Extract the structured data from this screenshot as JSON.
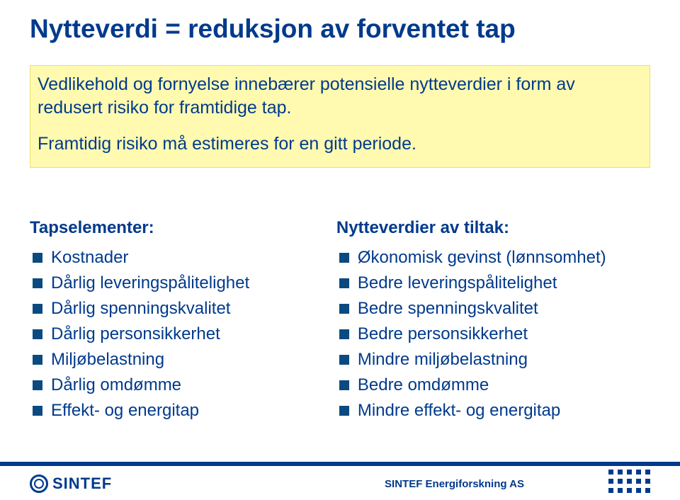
{
  "colors": {
    "brand": "#003a8c",
    "bullet": "#0b4a80",
    "highlight_bg": "#fffab0",
    "highlight_border": "#e8df70",
    "background": "#ffffff"
  },
  "typography": {
    "font_family": "Arial",
    "title_fontsize": 37,
    "title_weight": 700,
    "body_fontsize": 25,
    "list_fontsize": 24,
    "header_fontsize": 24,
    "header_weight": 700
  },
  "title": "Nytteverdi = reduksjon av forventet tap",
  "highlight": {
    "p1": "Vedlikehold og fornyelse innebærer potensielle nytteverdier i form av redusert risiko for framtidige tap.",
    "p2": "Framtidig risiko må estimeres for en gitt periode."
  },
  "left": {
    "header": "Tapselementer:",
    "items": [
      "Kostnader",
      "Dårlig leveringspålitelighet",
      "Dårlig spenningskvalitet",
      "Dårlig personsikkerhet",
      "Miljøbelastning",
      "Dårlig omdømme",
      "Effekt- og energitap"
    ]
  },
  "right": {
    "header": "Nytteverdier av tiltak:",
    "items": [
      "Økonomisk gevinst (lønnsomhet)",
      "Bedre leveringspålitelighet",
      "Bedre spenningskvalitet",
      "Bedre personsikkerhet",
      "Mindre miljøbelastning",
      "Bedre omdømme",
      "Mindre effekt- og energitap"
    ]
  },
  "footer": {
    "wordmark": "SINTEF",
    "company": "SINTEF Energiforskning AS",
    "dot_grid": {
      "rows": 3,
      "cols": 5
    }
  }
}
